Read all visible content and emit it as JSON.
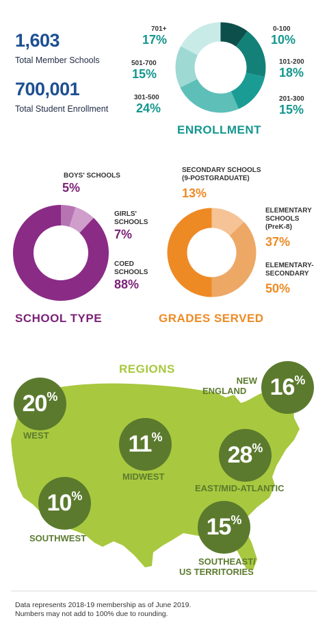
{
  "stats": {
    "schools_value": "1,603",
    "schools_label": "Total Member Schools",
    "students_value": "700,001",
    "students_label": "Total Student Enrollment"
  },
  "chart_data": [
    {
      "type": "pie",
      "title": "ENROLLMENT",
      "categories": [
        "0-100",
        "101-200",
        "201-300",
        "301-500",
        "501-700",
        "701+"
      ],
      "values": [
        10,
        18,
        15,
        24,
        15,
        17
      ],
      "labels": [
        "10%",
        "18%",
        "15%",
        "24%",
        "15%",
        "17%"
      ],
      "colors": [
        "#0d4f4a",
        "#138178",
        "#1a9c95",
        "#5dbfb8",
        "#9ed9d4",
        "#c9ebe8"
      ]
    },
    {
      "type": "pie",
      "title": "SCHOOL TYPE",
      "categories": [
        "BOYS' SCHOOLS",
        "GIRLS' SCHOOLS",
        "COED SCHOOLS"
      ],
      "values": [
        5,
        7,
        88
      ],
      "labels": [
        "5%",
        "7%",
        "88%"
      ],
      "colors": [
        "#b774b3",
        "#cf9ecb",
        "#8a2b86"
      ]
    },
    {
      "type": "pie",
      "title": "GRADES SERVED",
      "categories": [
        "SECONDARY SCHOOLS (9-POSTGRADUATE)",
        "ELEMENTARY SCHOOLS (PreK-8)",
        "ELEMENTARY-SECONDARY"
      ],
      "values": [
        13,
        37,
        50
      ],
      "labels": [
        "13%",
        "37%",
        "50%"
      ],
      "colors": [
        "#f5c396",
        "#eda866",
        "#ee8a24"
      ]
    },
    {
      "type": "map",
      "title": "REGIONS",
      "categories": [
        "WEST",
        "MIDWEST",
        "SOUTHWEST",
        "NEW ENGLAND",
        "EAST/MID-ATLANTIC",
        "SOUTHEAST/ US TERRITORIES"
      ],
      "values": [
        20,
        11,
        10,
        16,
        28,
        15
      ]
    }
  ],
  "enrollment_labels": {
    "c701": "701+",
    "c701_pct": "17%",
    "c501": "501-700",
    "c501_pct": "15%",
    "c301": "301-500",
    "c301_pct": "24%",
    "c0": "0-100",
    "c0_pct": "10%",
    "c101": "101-200",
    "c101_pct": "18%",
    "c201": "201-300",
    "c201_pct": "15%"
  },
  "school_type_labels": {
    "boys": "BOYS' SCHOOLS",
    "boys_pct": "5%",
    "girls_1": "GIRLS'",
    "girls_2": "SCHOOLS",
    "girls_pct": "7%",
    "coed_1": "COED",
    "coed_2": "SCHOOLS",
    "coed_pct": "88%"
  },
  "grades_labels": {
    "sec_1": "SECONDARY SCHOOLS",
    "sec_2": "(9-POSTGRADUATE)",
    "sec_pct": "13%",
    "elem_1": "ELEMENTARY",
    "elem_2": "SCHOOLS",
    "elem_3": "(PreK-8)",
    "elem_pct": "37%",
    "es_1": "ELEMENTARY-",
    "es_2": "SECONDARY",
    "es_pct": "50%"
  },
  "regions": {
    "west_n": "20",
    "west_label": "WEST",
    "midwest_n": "11",
    "midwest_label": "MIDWEST",
    "southwest_n": "10",
    "southwest_label": "SOUTHWEST",
    "ne_n": "16",
    "ne_label_1": "NEW",
    "ne_label_2": "ENGLAND",
    "east_n": "28",
    "east_label": "EAST/MID-ATLANTIC",
    "se_n": "15",
    "se_label_1": "SOUTHEAST/",
    "se_label_2": "US TERRITORIES",
    "pct_sign": "%",
    "map_color": "#a8c83f"
  },
  "footer": {
    "line1": "Data represents 2018-19 membership as of June 2019.",
    "line2": "Numbers may not add to 100% due to rounding."
  }
}
